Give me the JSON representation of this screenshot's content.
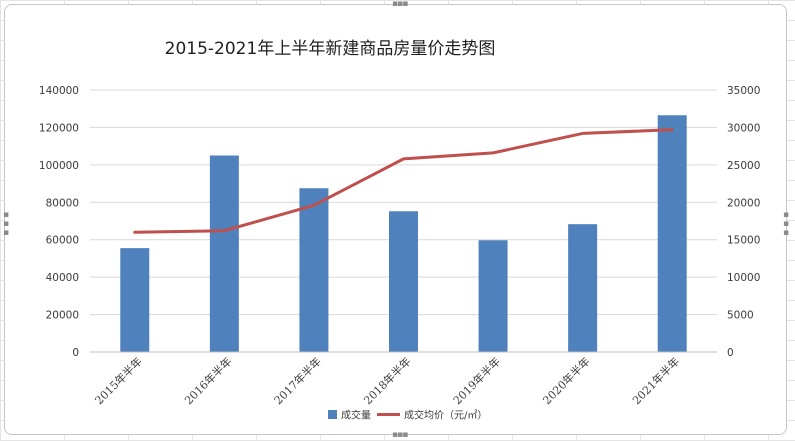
{
  "chart_data": {
    "type": "bar",
    "title": "2015-2021年上半年新建商品房量价走势图",
    "categories": [
      "2015年半年",
      "2016年半年",
      "2017年半年",
      "2018年半年",
      "2019年半年",
      "2020年半年",
      "2021年半年"
    ],
    "series": [
      {
        "name": "成交量",
        "type": "bar",
        "axis": "left",
        "color": "#4f81bd",
        "values": [
          55500,
          105000,
          87500,
          75200,
          59700,
          68300,
          126500
        ]
      },
      {
        "name": "成交均价（元/㎡）",
        "type": "line",
        "axis": "right",
        "color": "#c0504d",
        "values": [
          16000,
          16200,
          19600,
          25800,
          26600,
          29200,
          29700
        ]
      }
    ],
    "y_left": {
      "min": 0,
      "max": 140000,
      "step": 20000,
      "ticks": [
        "0",
        "20000",
        "40000",
        "60000",
        "80000",
        "100000",
        "120000",
        "140000"
      ]
    },
    "y_right": {
      "min": 0,
      "max": 35000,
      "step": 5000,
      "ticks": [
        "0",
        "5000",
        "10000",
        "15000",
        "20000",
        "25000",
        "30000",
        "35000"
      ]
    },
    "grid": true,
    "legend_position": "bottom"
  }
}
